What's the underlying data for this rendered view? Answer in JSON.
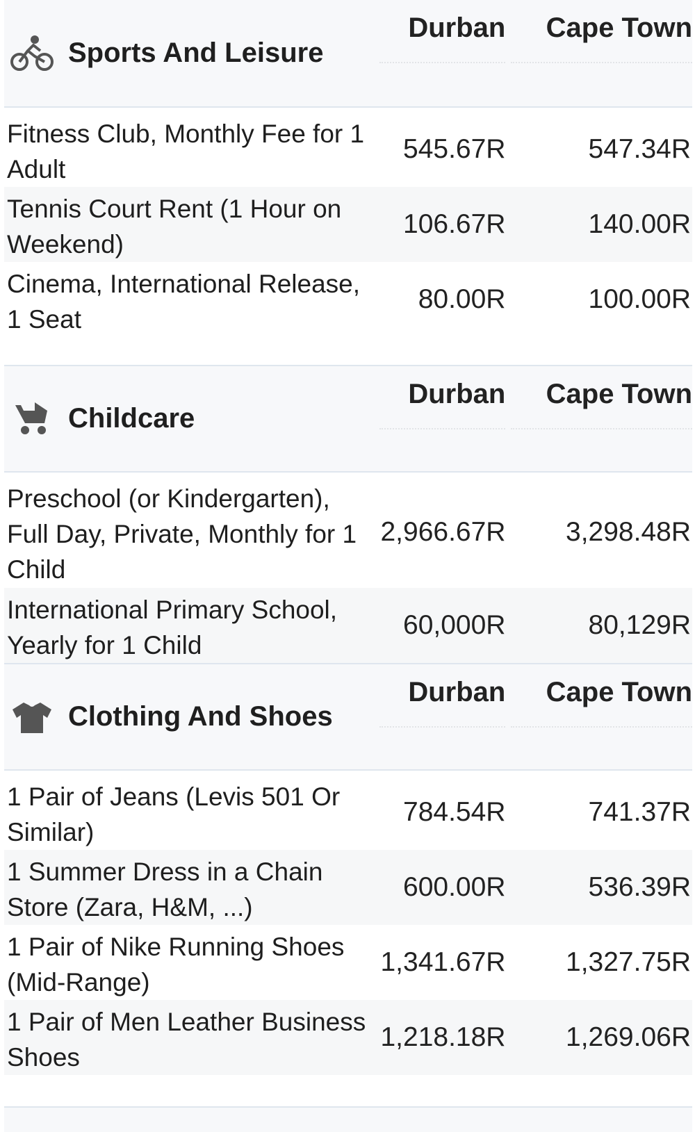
{
  "sections": [
    {
      "title": "Sports And Leisure",
      "icon": "bicycle-icon",
      "columns": [
        "Durban",
        "Cape Town"
      ],
      "rows": [
        {
          "label": "Fitness Club, Monthly Fee for 1 Adult",
          "durban": "545.67R",
          "cape_town": "547.34R"
        },
        {
          "label": "Tennis Court Rent (1 Hour on Weekend)",
          "durban": "106.67R",
          "cape_town": "140.00R"
        },
        {
          "label": "Cinema, International Release, 1 Seat",
          "durban": "80.00R",
          "cape_town": "100.00R"
        }
      ]
    },
    {
      "title": "Childcare",
      "icon": "stroller-icon",
      "columns": [
        "Durban",
        "Cape Town"
      ],
      "rows": [
        {
          "label": "Preschool (or Kindergarten), Full Day, Private, Monthly for 1 Child",
          "durban": "2,966.67R",
          "cape_town": "3,298.48R"
        },
        {
          "label": "International Primary School, Yearly for 1 Child",
          "durban": "60,000R",
          "cape_town": "80,129R"
        }
      ]
    },
    {
      "title": "Clothing And Shoes",
      "icon": "tshirt-icon",
      "columns": [
        "Durban",
        "Cape Town"
      ],
      "rows": [
        {
          "label": "1 Pair of Jeans (Levis 501 Or Similar)",
          "durban": "784.54R",
          "cape_town": "741.37R"
        },
        {
          "label": "1 Summer Dress in a Chain Store (Zara, H&M, ...)",
          "durban": "600.00R",
          "cape_town": "536.39R"
        },
        {
          "label": "1 Pair of Nike Running Shoes (Mid-Range)",
          "durban": "1,341.67R",
          "cape_town": "1,327.75R"
        },
        {
          "label": "1 Pair of Men Leather Business Shoes",
          "durban": "1,218.18R",
          "cape_town": "1,269.06R"
        }
      ]
    }
  ]
}
